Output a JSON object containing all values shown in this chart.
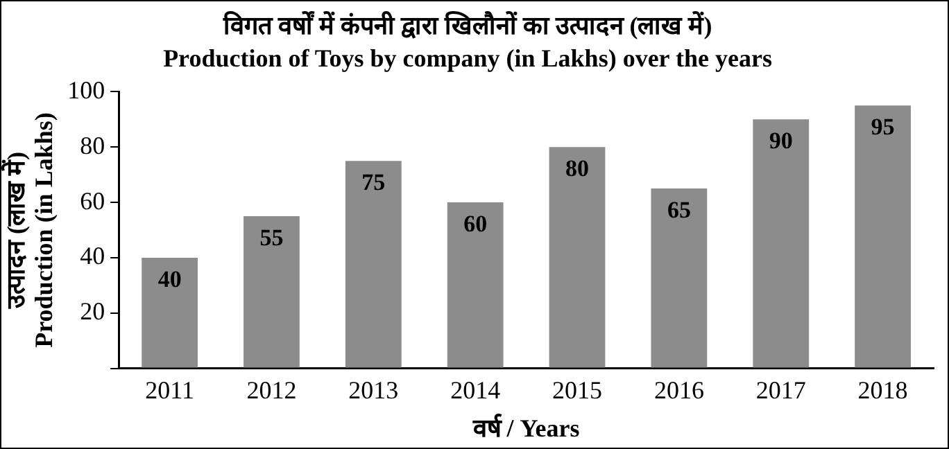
{
  "chart_data": {
    "type": "bar",
    "title": "विगत वर्षों में कंपनी द्वारा खिलौनों का उत्पादन (लाख में)",
    "subtitle": "Production of Toys by company (in Lakhs) over the years",
    "xlabel": "वर्ष / Years",
    "ylabel": "उत्पादन (लाख में)\nProduction (in Lakhs)",
    "categories": [
      "2011",
      "2012",
      "2013",
      "2014",
      "2015",
      "2016",
      "2017",
      "2018"
    ],
    "values": [
      40,
      55,
      75,
      60,
      80,
      65,
      90,
      95
    ],
    "color": "#8c8c8c",
    "ylim": [
      0,
      100
    ],
    "yticks": [
      {
        "value": 0,
        "label": null
      },
      20,
      40,
      60,
      80,
      100
    ],
    "grid": false,
    "legend": false,
    "data_labels": true
  }
}
